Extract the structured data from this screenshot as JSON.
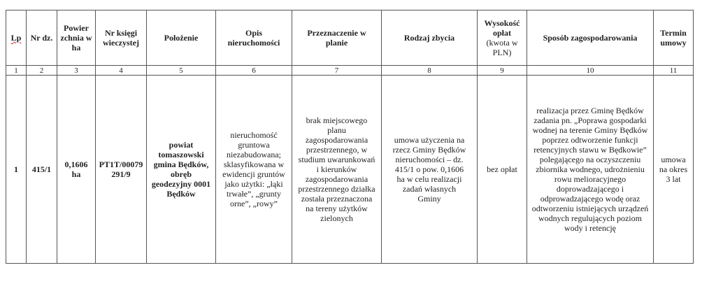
{
  "headers": [
    {
      "label": "Lp"
    },
    {
      "label": "Nr dz."
    },
    {
      "label": "Powier zchnia w ha"
    },
    {
      "label": "Nr księgi wieczystej"
    },
    {
      "label": "Położenie"
    },
    {
      "label": "Opis nieruchomości"
    },
    {
      "label": "Przeznaczenie w planie"
    },
    {
      "label": "Rodzaj zbycia"
    },
    {
      "label": "Wysokość opłat",
      "sub": "(kwota w PLN)"
    },
    {
      "label": "Sposób zagospodarowania"
    },
    {
      "label": "Termin umowy"
    }
  ],
  "numbers": [
    "1",
    "2",
    "3",
    "4",
    "5",
    "6",
    "7",
    "8",
    "9",
    "10",
    "11"
  ],
  "row": {
    "lp": "1",
    "nr_dz": "415/1",
    "powierzchnia": "0,1606 ha",
    "ksiega": "PT1T/00079291/9",
    "polozenie": "powiat tomaszowski gmina Będków, obręb geodezyjny 0001 Będków",
    "opis": "nieruchomość gruntowa niezabudowana; sklasyfikowana w ewidencji gruntów jako użytki: „łąki trwałe”, „grunty orne”, „rowy”",
    "przeznaczenie": "brak miejscowego planu zagospodarowania przestrzennego, w studium uwarunkowań i kierunków zagospodarowania przestrzennego działka została przeznaczona na tereny użytków zielonych",
    "rodzaj": "umowa użyczenia na rzecz Gminy Będków nieruchomości – dz. 415/1 o pow. 0,1606 ha w celu realizacji zadań własnych Gminy",
    "oplaty": "bez opłat",
    "sposob": "realizacja przez Gminę Będków zadania pn. „Poprawa gospodarki wodnej na terenie Gminy Będków poprzez odtworzenie funkcji retencyjnych stawu w Będkowie” polegającego na oczyszczeniu zbiornika wodnego, udrożnieniu rowu melioracyjnego doprowadzającego i odprowadzającego wodę oraz odtworzeniu istniejących urządzeń wodnych regulujących poziom wody i retencję",
    "termin": "umowa na okres 3 lat"
  }
}
